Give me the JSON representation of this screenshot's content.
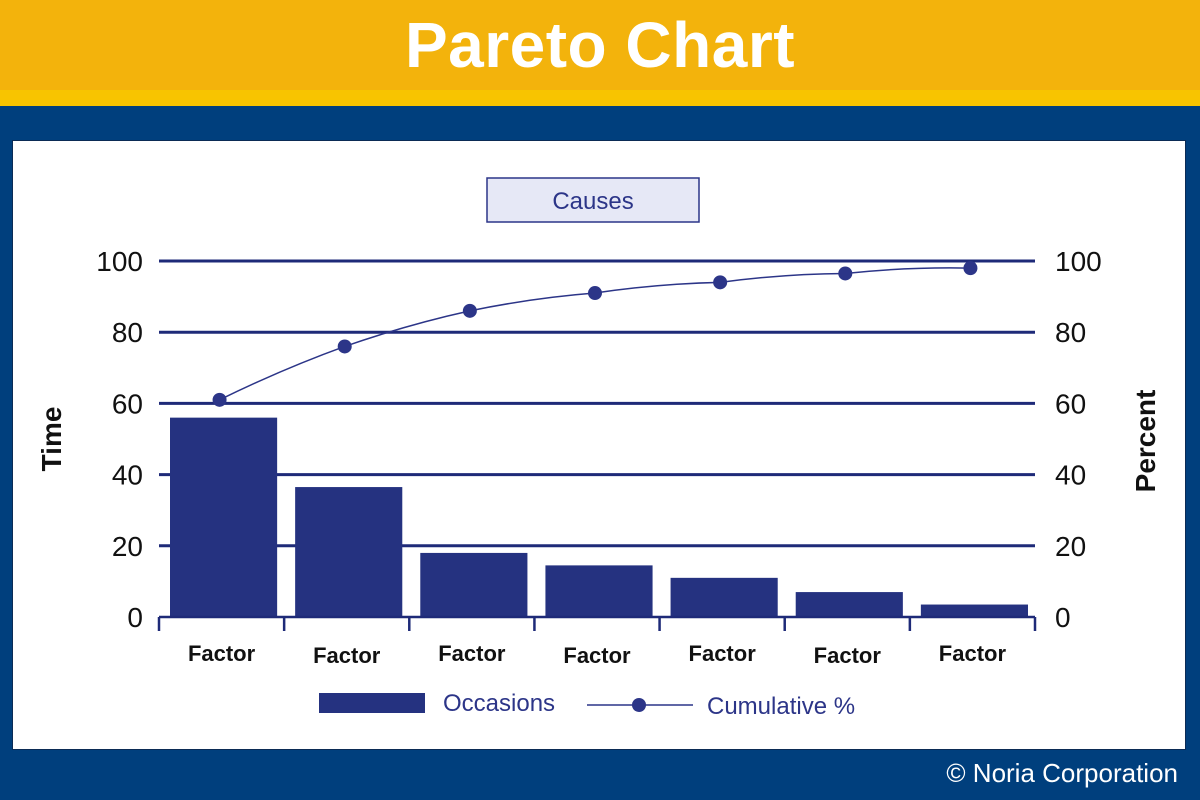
{
  "header": {
    "title": "Pareto Chart"
  },
  "footer": {
    "credit": "© Noria Corporation"
  },
  "colors": {
    "banner": "#f3b30c",
    "background": "#003f7d",
    "bar": "#253280",
    "line": "#2c3588",
    "grid": "#1e2a78"
  },
  "chart_data": {
    "type": "bar",
    "title": "Causes",
    "categories": [
      "Factor",
      "Factor",
      "Factor",
      "Factor",
      "Factor",
      "Factor",
      "Factor"
    ],
    "ylabel": "Time",
    "y2label": "Percent",
    "ylim": [
      0,
      100
    ],
    "y2lim": [
      0,
      100
    ],
    "yticks": [
      0,
      20,
      40,
      60,
      80,
      100
    ],
    "grid": true,
    "legend_position": "bottom",
    "series": [
      {
        "name": "Occasions",
        "type": "bar",
        "values": [
          56,
          36.5,
          18,
          14.5,
          11,
          7,
          3.5
        ]
      },
      {
        "name": "Cumulative %",
        "type": "line",
        "values": [
          61,
          76,
          86,
          91,
          94,
          96.5,
          98
        ]
      }
    ]
  }
}
